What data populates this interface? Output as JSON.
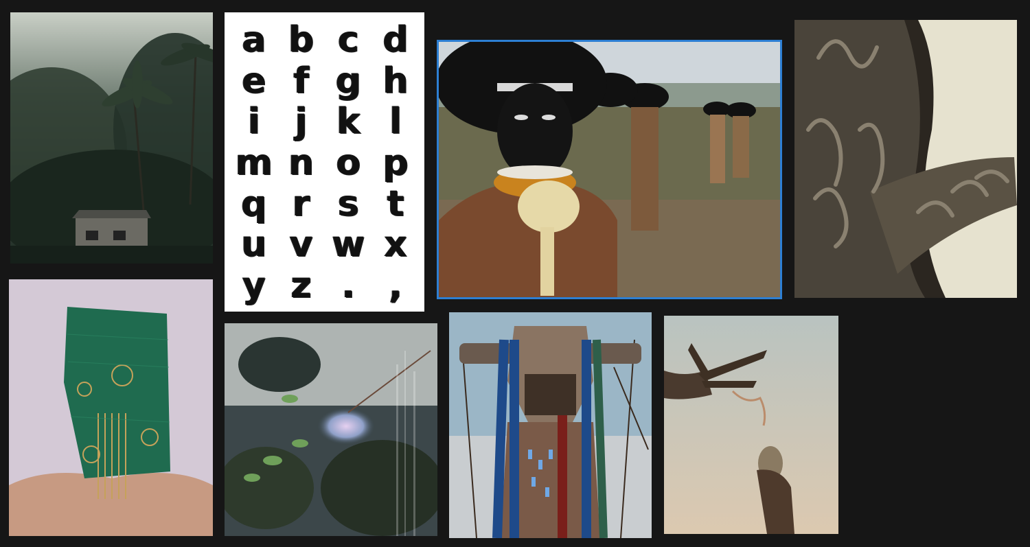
{
  "board": {
    "background": "#161616",
    "selection_color": "#2d7fd3",
    "selected_card": "tribe-photo"
  },
  "cards": [
    {
      "id": "jungle-photo",
      "subject": "misty jungle with palms and small brick hut"
    },
    {
      "id": "alphabet-sheet",
      "subject": "hand-painted brush alphabet glyph sheet"
    },
    {
      "id": "tribe-photo",
      "subject": "painted tribesmen with headdresses in a row"
    },
    {
      "id": "scar-arm-photo",
      "subject": "arm with raised scarification patterns"
    },
    {
      "id": "wire-mask-photo",
      "subject": "green wire-mesh mask covering a head"
    },
    {
      "id": "glitch-plant-photo",
      "subject": "iridescent glitch sculpture among leaves"
    },
    {
      "id": "warrior-render",
      "subject": "horned masked warrior character"
    },
    {
      "id": "feather-smoke-photo",
      "subject": "hands with feather and smoking sage bundle"
    }
  ],
  "alphabet": {
    "glyphs": [
      "a",
      "b",
      "c",
      "d",
      "e",
      "f",
      "g",
      "h",
      "i",
      "j",
      "k",
      "l",
      "m",
      "n",
      "o",
      "p",
      "q",
      "r",
      "s",
      "t",
      "u",
      "v",
      "w",
      "x",
      "y",
      "z",
      ".",
      ","
    ]
  }
}
